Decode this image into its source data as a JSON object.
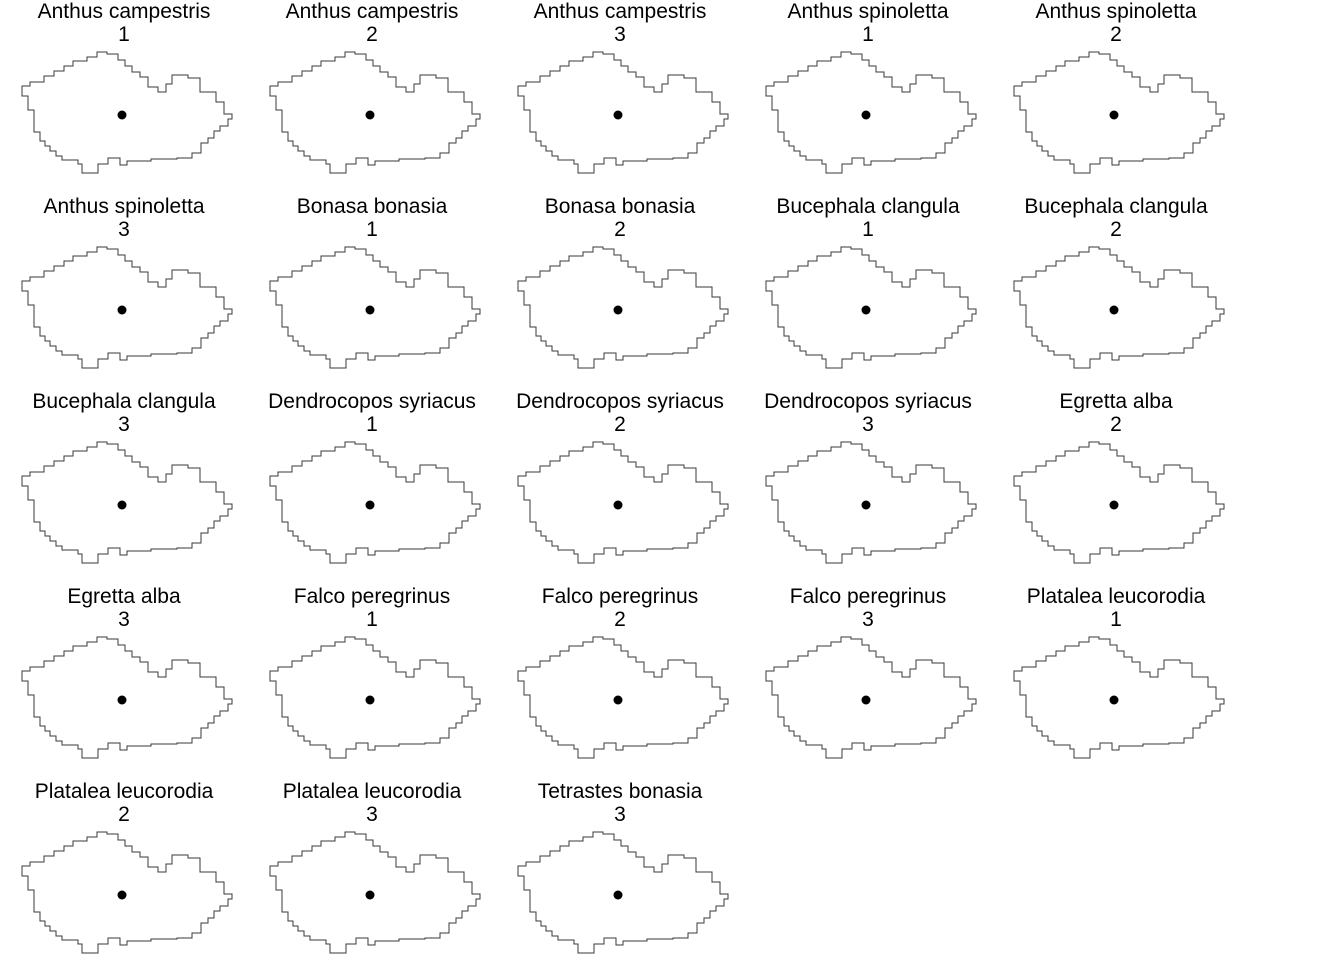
{
  "panels": [
    {
      "species": "Anthus campestris",
      "period": "1"
    },
    {
      "species": "Anthus campestris",
      "period": "2"
    },
    {
      "species": "Anthus campestris",
      "period": "3"
    },
    {
      "species": "Anthus spinoletta",
      "period": "1"
    },
    {
      "species": "Anthus spinoletta",
      "period": "2"
    },
    {
      "species": "Anthus spinoletta",
      "period": "3"
    },
    {
      "species": "Bonasa bonasia",
      "period": "1"
    },
    {
      "species": "Bonasa bonasia",
      "period": "2"
    },
    {
      "species": "Bucephala clangula",
      "period": "1"
    },
    {
      "species": "Bucephala clangula",
      "period": "2"
    },
    {
      "species": "Bucephala clangula",
      "period": "3"
    },
    {
      "species": "Dendrocopos syriacus",
      "period": "1"
    },
    {
      "species": "Dendrocopos syriacus",
      "period": "2"
    },
    {
      "species": "Dendrocopos syriacus",
      "period": "3"
    },
    {
      "species": "Egretta alba",
      "period": "2"
    },
    {
      "species": "Egretta alba",
      "period": "3"
    },
    {
      "species": "Falco peregrinus",
      "period": "1"
    },
    {
      "species": "Falco peregrinus",
      "period": "2"
    },
    {
      "species": "Falco peregrinus",
      "period": "3"
    },
    {
      "species": "Platalea leucorodia",
      "period": "1"
    },
    {
      "species": "Platalea leucorodia",
      "period": "2"
    },
    {
      "species": "Platalea leucorodia",
      "period": "3"
    },
    {
      "species": "Tetrastes bonasia",
      "period": "3"
    }
  ],
  "colors": {
    "outline": "#3a3a3a",
    "point": "#000000",
    "background": "#ffffff"
  }
}
